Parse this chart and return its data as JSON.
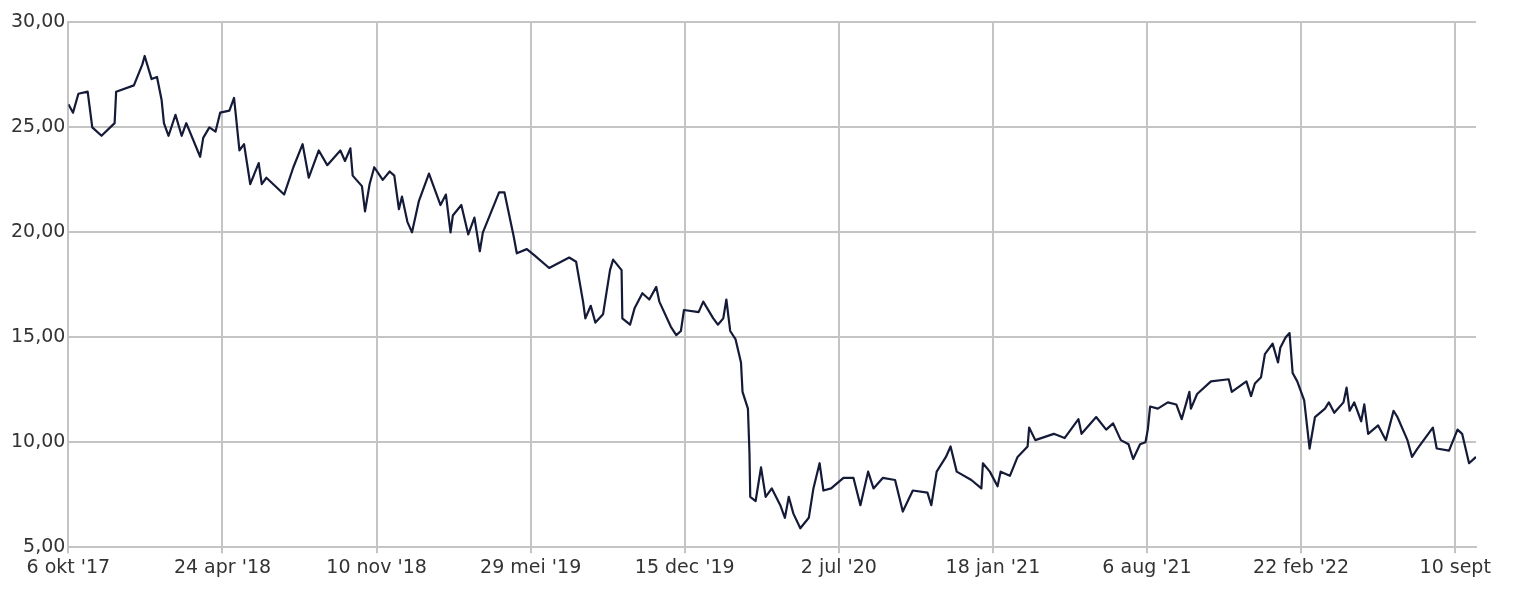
{
  "chart_data": {
    "type": "line",
    "color": "#141a38",
    "grid": true,
    "legend": false,
    "marker": "none",
    "line_style": "solid",
    "xlim": [
      "2017-10-06",
      "2022-10-07"
    ],
    "xticks": [
      {
        "value": "2017-10-06",
        "label": "6 okt '17"
      },
      {
        "value": "2018-04-24",
        "label": "24 apr '18"
      },
      {
        "value": "2018-11-10",
        "label": "10 nov '18"
      },
      {
        "value": "2019-05-29",
        "label": "29 mei '19"
      },
      {
        "value": "2019-12-15",
        "label": "15 dec '19"
      },
      {
        "value": "2020-07-02",
        "label": "2 jul '20"
      },
      {
        "value": "2021-01-18",
        "label": "18 jan '21"
      },
      {
        "value": "2021-08-06",
        "label": "6 aug '21"
      },
      {
        "value": "2022-02-22",
        "label": "22 feb '22"
      },
      {
        "value": "2022-09-10",
        "label": "10 sept"
      }
    ],
    "ylim": [
      5,
      30
    ],
    "yticks": [
      {
        "value": 5,
        "label": "5,00"
      },
      {
        "value": 10,
        "label": "10,00"
      },
      {
        "value": 15,
        "label": "15,00"
      },
      {
        "value": 20,
        "label": "20,00"
      },
      {
        "value": 25,
        "label": "25,00"
      },
      {
        "value": 30,
        "label": "30,00"
      }
    ],
    "x": [
      "2017-10-06",
      "2017-10-12",
      "2017-10-19",
      "2017-10-31",
      "2017-11-06",
      "2017-11-18",
      "2017-12-05",
      "2017-12-07",
      "2017-12-30",
      "2018-01-10",
      "2018-01-13",
      "2018-01-22",
      "2018-01-29",
      "2018-02-04",
      "2018-02-07",
      "2018-02-13",
      "2018-02-22",
      "2018-03-02",
      "2018-03-08",
      "2018-03-26",
      "2018-03-30",
      "2018-04-07",
      "2018-04-15",
      "2018-04-21",
      "2018-05-03",
      "2018-05-09",
      "2018-05-11",
      "2018-05-16",
      "2018-05-22",
      "2018-05-30",
      "2018-06-10",
      "2018-06-14",
      "2018-06-20",
      "2018-07-13",
      "2018-07-25",
      "2018-08-06",
      "2018-08-14",
      "2018-08-27",
      "2018-09-07",
      "2018-09-24",
      "2018-09-30",
      "2018-10-07",
      "2018-10-10",
      "2018-10-22",
      "2018-10-26",
      "2018-11-01",
      "2018-11-07",
      "2018-11-18",
      "2018-11-27",
      "2018-12-03",
      "2018-12-09",
      "2018-12-13",
      "2018-12-20",
      "2018-12-26",
      "2019-01-04",
      "2019-01-17",
      "2019-02-01",
      "2019-02-08",
      "2019-02-14",
      "2019-02-17",
      "2019-02-28",
      "2019-03-09",
      "2019-03-17",
      "2019-03-24",
      "2019-03-28",
      "2019-04-07",
      "2019-04-18",
      "2019-04-25",
      "2019-05-07",
      "2019-05-11",
      "2019-05-24",
      "2019-06-03",
      "2019-06-22",
      "2019-07-18",
      "2019-07-27",
      "2019-08-05",
      "2019-08-08",
      "2019-08-15",
      "2019-08-21",
      "2019-08-31",
      "2019-09-09",
      "2019-09-13",
      "2019-09-24",
      "2019-09-25",
      "2019-10-05",
      "2019-10-11",
      "2019-10-21",
      "2019-10-30",
      "2019-11-08",
      "2019-11-12",
      "2019-11-27",
      "2019-12-04",
      "2019-12-10",
      "2019-12-14",
      "2020-01-02",
      "2020-01-08",
      "2020-01-21",
      "2020-01-27",
      "2020-02-03",
      "2020-02-07",
      "2020-02-12",
      "2020-02-19",
      "2020-02-26",
      "2020-02-28",
      "2020-03-06",
      "2020-03-08",
      "2020-03-09",
      "2020-03-16",
      "2020-03-23",
      "2020-03-29",
      "2020-04-06",
      "2020-04-17",
      "2020-04-23",
      "2020-04-28",
      "2020-05-04",
      "2020-05-13",
      "2020-05-24",
      "2020-05-30",
      "2020-06-07",
      "2020-06-12",
      "2020-06-22",
      "2020-07-08",
      "2020-07-21",
      "2020-07-30",
      "2020-08-09",
      "2020-08-16",
      "2020-08-28",
      "2020-09-13",
      "2020-09-23",
      "2020-10-06",
      "2020-10-25",
      "2020-10-30",
      "2020-11-06",
      "2020-11-18",
      "2020-11-24",
      "2020-12-02",
      "2020-12-21",
      "2021-01-03",
      "2021-01-05",
      "2021-01-14",
      "2021-01-24",
      "2021-01-28",
      "2021-02-09",
      "2021-02-19",
      "2021-03-04",
      "2021-03-06",
      "2021-03-14",
      "2021-04-07",
      "2021-04-21",
      "2021-05-09",
      "2021-05-13",
      "2021-06-01",
      "2021-06-14",
      "2021-06-23",
      "2021-07-03",
      "2021-07-13",
      "2021-07-19",
      "2021-07-28",
      "2021-08-04",
      "2021-08-07",
      "2021-08-10",
      "2021-08-20",
      "2021-09-02",
      "2021-09-13",
      "2021-09-20",
      "2021-09-30",
      "2021-10-02",
      "2021-10-10",
      "2021-10-28",
      "2021-11-20",
      "2021-11-24",
      "2021-12-13",
      "2021-12-19",
      "2021-12-24",
      "2022-01-01",
      "2022-01-06",
      "2022-01-16",
      "2022-01-23",
      "2022-01-26",
      "2022-02-02",
      "2022-02-07",
      "2022-02-11",
      "2022-02-17",
      "2022-02-26",
      "2022-03-05",
      "2022-03-12",
      "2022-03-25",
      "2022-03-30",
      "2022-04-06",
      "2022-04-18",
      "2022-04-22",
      "2022-04-26",
      "2022-05-02",
      "2022-05-11",
      "2022-05-15",
      "2022-05-20",
      "2022-06-02",
      "2022-06-12",
      "2022-06-22",
      "2022-06-27",
      "2022-07-10",
      "2022-07-16",
      "2022-07-23",
      "2022-08-12",
      "2022-08-17",
      "2022-09-02",
      "2022-09-13",
      "2022-09-19",
      "2022-09-28",
      "2022-10-07"
    ],
    "values": [
      26.1,
      25.7,
      26.6,
      26.7,
      25.0,
      24.6,
      25.2,
      26.7,
      27.0,
      28.0,
      28.4,
      27.3,
      27.4,
      26.3,
      25.2,
      24.6,
      25.6,
      24.6,
      25.2,
      23.6,
      24.5,
      25.0,
      24.8,
      25.7,
      25.8,
      26.4,
      25.7,
      23.9,
      24.2,
      22.3,
      23.3,
      22.3,
      22.6,
      21.8,
      23.1,
      24.2,
      22.6,
      23.9,
      23.2,
      23.9,
      23.4,
      24.0,
      22.7,
      22.2,
      21.0,
      22.3,
      23.1,
      22.5,
      22.9,
      22.7,
      21.1,
      21.7,
      20.5,
      20.0,
      21.5,
      22.8,
      21.3,
      21.8,
      20.0,
      20.8,
      21.3,
      19.9,
      20.7,
      19.1,
      20.0,
      20.9,
      21.9,
      21.9,
      19.8,
      19.0,
      19.2,
      18.9,
      18.3,
      18.8,
      18.6,
      16.7,
      15.9,
      16.5,
      15.7,
      16.1,
      18.2,
      18.7,
      18.2,
      15.9,
      15.6,
      16.4,
      17.1,
      16.8,
      17.4,
      16.7,
      15.5,
      15.1,
      15.3,
      16.3,
      16.2,
      16.7,
      15.9,
      15.6,
      15.9,
      16.8,
      15.3,
      14.9,
      13.8,
      12.4,
      11.6,
      9.5,
      7.4,
      7.2,
      8.8,
      7.4,
      7.8,
      7.0,
      6.4,
      7.4,
      6.6,
      5.9,
      6.4,
      7.8,
      9.0,
      7.7,
      7.8,
      8.3,
      8.3,
      7.0,
      8.6,
      7.8,
      8.3,
      8.2,
      6.7,
      7.7,
      7.6,
      7.0,
      8.6,
      9.3,
      9.8,
      8.6,
      8.2,
      7.8,
      9.0,
      8.6,
      7.9,
      8.6,
      8.4,
      9.3,
      9.8,
      10.7,
      10.1,
      10.4,
      10.2,
      11.1,
      10.4,
      11.2,
      10.6,
      10.9,
      10.1,
      9.9,
      9.2,
      9.9,
      10.0,
      10.6,
      11.7,
      11.6,
      11.9,
      11.8,
      11.1,
      12.4,
      11.6,
      12.3,
      12.9,
      13.0,
      12.4,
      12.9,
      12.2,
      12.8,
      13.1,
      14.2,
      14.7,
      13.8,
      14.5,
      15.0,
      15.2,
      13.3,
      12.9,
      12.0,
      9.7,
      11.2,
      11.6,
      11.9,
      11.4,
      11.9,
      12.6,
      11.5,
      11.9,
      11.0,
      11.8,
      10.4,
      10.8,
      10.1,
      11.5,
      11.2,
      10.1,
      9.3,
      9.7,
      10.7,
      9.7,
      9.6,
      10.6,
      10.4,
      9.0,
      9.3
    ]
  }
}
